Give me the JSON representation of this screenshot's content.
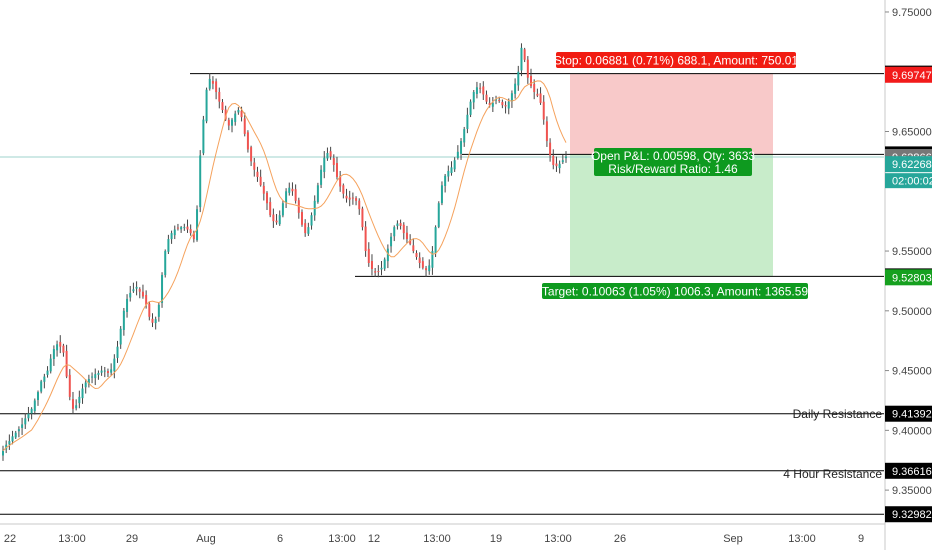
{
  "colors": {
    "up": "#26a69a",
    "down": "#ef5350",
    "wick": "#444444",
    "ma": "#f5a25d",
    "hline": "#000000",
    "stop_fill": "#f8c9c9",
    "target_fill": "#c8ecca",
    "stop_label": "#f11c12",
    "target_label": "#0e9a1f",
    "last_price": "#26a69a",
    "current_price_bg": "#777777",
    "countdown_bg": "#26a69a",
    "axis_text": "#444444"
  },
  "chart_data": {
    "type": "candlestick",
    "ylim": [
      9.325,
      9.755
    ],
    "y_ticks": [
      "9.75000",
      "9.65000",
      "9.55000",
      "9.50000",
      "9.45000",
      "9.40000",
      "9.35000"
    ],
    "x_ticks": [
      "22",
      "13:00",
      "29",
      "Aug",
      "6",
      "13:00",
      "12",
      "13:00",
      "19",
      "13:00",
      "26",
      "Sep",
      "13:00",
      "9"
    ],
    "closes": [
      9.383,
      9.388,
      9.391,
      9.395,
      9.398,
      9.401,
      9.405,
      9.41,
      9.414,
      9.418,
      9.425,
      9.432,
      9.441,
      9.445,
      9.45,
      9.46,
      9.468,
      9.472,
      9.47,
      9.465,
      9.445,
      9.428,
      9.418,
      9.421,
      9.428,
      9.435,
      9.44,
      9.443,
      9.445,
      9.447,
      9.448,
      9.45,
      9.45,
      9.448,
      9.451,
      9.46,
      9.47,
      9.485,
      9.5,
      9.51,
      9.515,
      9.518,
      9.52,
      9.516,
      9.512,
      9.505,
      9.495,
      9.49,
      9.493,
      9.505,
      9.53,
      9.55,
      9.56,
      9.565,
      9.568,
      9.569,
      9.57,
      9.57,
      9.568,
      9.565,
      9.56,
      9.585,
      9.63,
      9.66,
      9.685,
      9.694,
      9.69,
      9.683,
      9.675,
      9.668,
      9.66,
      9.655,
      9.66,
      9.665,
      9.668,
      9.662,
      9.648,
      9.635,
      9.625,
      9.618,
      9.612,
      9.605,
      9.598,
      9.59,
      9.58,
      9.575,
      9.574,
      9.58,
      9.59,
      9.6,
      9.603,
      9.6,
      9.592,
      9.582,
      9.572,
      9.565,
      9.57,
      9.58,
      9.592,
      9.605,
      9.618,
      9.628,
      9.632,
      9.629,
      9.622,
      9.612,
      9.604,
      9.598,
      9.594,
      9.593,
      9.594,
      9.592,
      9.585,
      9.57,
      9.55,
      9.54,
      9.535,
      9.532,
      9.533,
      9.536,
      9.543,
      9.552,
      9.562,
      9.57,
      9.573,
      9.571,
      9.565,
      9.56,
      9.556,
      9.55,
      9.545,
      9.54,
      9.536,
      9.534,
      9.538,
      9.55,
      9.57,
      9.59,
      9.605,
      9.613,
      9.617,
      9.62,
      9.626,
      9.633,
      9.642,
      9.652,
      9.664,
      9.675,
      9.683,
      9.687,
      9.686,
      9.681,
      9.675,
      9.672,
      9.674,
      9.677,
      9.676,
      9.672,
      9.671,
      9.675,
      9.682,
      9.69,
      9.7,
      9.72,
      9.71,
      9.695,
      9.688,
      9.683,
      9.68,
      9.674,
      9.66,
      9.642,
      9.63,
      9.622,
      9.621,
      9.623,
      9.626,
      9.629
    ],
    "sma_period": 10,
    "horizontal_lines": [
      {
        "price": 9.69843,
        "label": "9.69843"
      },
      {
        "price": 9.63085,
        "label": "9.63085"
      },
      {
        "price": 9.52879,
        "label": "9.52879"
      },
      {
        "price": 9.41392,
        "label": "9.41392"
      },
      {
        "price": 9.36616,
        "label": "9.36616"
      },
      {
        "price": 9.32982,
        "label": "9.32982"
      }
    ],
    "current_price_line": 9.62866,
    "stop_price": 9.69843,
    "entry_price": 9.63085,
    "target_price": 9.52879,
    "price_tags": [
      {
        "price": 9.69747,
        "label": "9.69747",
        "style": "red"
      },
      {
        "price": 9.62866,
        "label": "9.62866",
        "style": "grey"
      },
      {
        "price": 9.62268,
        "label": "9.62268",
        "style": "teal"
      },
      {
        "price": 9.52803,
        "label": "9.52803",
        "style": "green"
      }
    ],
    "countdown": "02:00:02",
    "annotations": {
      "daily_resistance": "Daily Resistance",
      "four_hour_resistance": "4 Hour Resistance",
      "stop_label": "Stop: 0.06881 (0.71%) 688.1, Amount: 750.01",
      "open_pl_label": "Open P&L: 0.00598, Qty: 3633",
      "risk_reward_label": "Risk/Reward Ratio: 1.46",
      "target_label": "Target: 0.10063 (1.05%) 1006.3, Amount: 1365.59"
    }
  }
}
